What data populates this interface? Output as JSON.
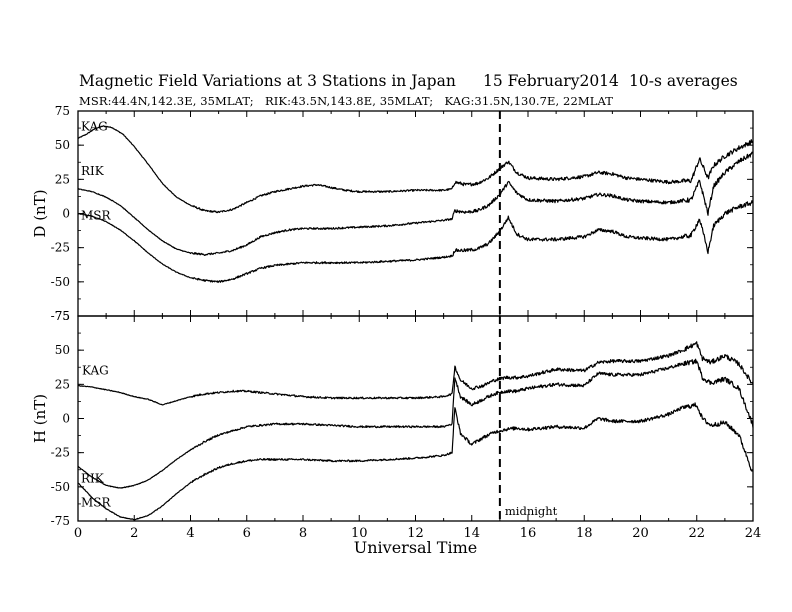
{
  "title": {
    "main": "Magnetic Field Variations at 3 Stations in Japan",
    "date": "15 February2014",
    "avg": "10-s averages"
  },
  "subtitle": "MSR:44.4N,142.3E, 35MLAT;   RIK:43.5N,143.8E, 35MLAT;   KAG:31.5N,130.7E, 22MLAT",
  "chart_data": [
    {
      "type": "line",
      "ylabel": "D (nT)",
      "xlim": [
        0,
        24
      ],
      "ylim": [
        -75,
        75
      ],
      "yticks": [
        -75,
        -50,
        -25,
        0,
        25,
        50,
        75
      ],
      "grid": false,
      "marker": {
        "x": 15,
        "style": "dashed"
      },
      "series": [
        {
          "name": "KAG",
          "x": [
            0,
            0.3,
            0.6,
            0.9,
            1.2,
            1.6,
            2.0,
            2.5,
            3.0,
            3.5,
            4.0,
            4.5,
            5.0,
            5.5,
            6.0,
            6.5,
            7.0,
            7.5,
            8.0,
            8.5,
            9.0,
            9.5,
            10.0,
            11.0,
            12.0,
            13.0,
            13.3,
            13.4,
            13.8,
            14.2,
            14.6,
            15.0,
            15.3,
            15.6,
            16.0,
            17.0,
            18.0,
            18.5,
            19.0,
            19.5,
            20.0,
            21.0,
            21.8,
            22.1,
            22.4,
            22.6,
            23.0,
            23.5,
            24.0
          ],
          "values": [
            55,
            58,
            62,
            64,
            63,
            58,
            49,
            36,
            22,
            12,
            6,
            2,
            1,
            3,
            8,
            13,
            16,
            18,
            20,
            21,
            19,
            17,
            16,
            16,
            17,
            17,
            18,
            23,
            21,
            22,
            26,
            33,
            38,
            30,
            26,
            25,
            27,
            30,
            29,
            26,
            25,
            23,
            24,
            40,
            26,
            35,
            42,
            48,
            53
          ]
        },
        {
          "name": "RIK",
          "x": [
            0,
            0.5,
            1.0,
            1.5,
            2.0,
            2.5,
            3.0,
            3.5,
            4.0,
            4.5,
            5.0,
            5.5,
            6.0,
            6.5,
            7.0,
            7.5,
            8.0,
            9.0,
            10.0,
            11.0,
            12.0,
            13.0,
            13.3,
            13.4,
            13.8,
            14.2,
            14.6,
            15.0,
            15.3,
            15.6,
            16.0,
            17.0,
            18.0,
            18.5,
            19.0,
            19.5,
            20.0,
            21.0,
            21.8,
            22.1,
            22.4,
            22.6,
            23.0,
            23.5,
            24.0
          ],
          "values": [
            18,
            16,
            12,
            6,
            -3,
            -12,
            -20,
            -26,
            -29,
            -30,
            -29,
            -27,
            -23,
            -17,
            -14,
            -12,
            -11,
            -11,
            -10,
            -9,
            -7,
            -5,
            -4,
            2,
            1,
            2,
            6,
            14,
            23,
            15,
            10,
            9,
            11,
            14,
            13,
            10,
            9,
            8,
            10,
            24,
            0,
            20,
            30,
            38,
            44
          ]
        },
        {
          "name": "MSR",
          "x": [
            0,
            0.5,
            1.0,
            1.5,
            2.0,
            2.5,
            3.0,
            3.5,
            4.0,
            4.5,
            5.0,
            5.5,
            6.0,
            6.5,
            7.0,
            7.5,
            8.0,
            9.0,
            10.0,
            11.0,
            12.0,
            13.0,
            13.3,
            13.4,
            13.8,
            14.2,
            14.6,
            15.0,
            15.3,
            15.6,
            16.0,
            17.0,
            18.0,
            18.5,
            19.0,
            19.5,
            20.0,
            21.0,
            21.8,
            22.1,
            22.4,
            22.6,
            23.0,
            23.5,
            24.0
          ],
          "values": [
            0,
            -2,
            -6,
            -12,
            -20,
            -29,
            -37,
            -43,
            -47,
            -49,
            -50,
            -48,
            -44,
            -40,
            -38,
            -37,
            -36,
            -36,
            -36,
            -35,
            -34,
            -32,
            -31,
            -27,
            -27,
            -26,
            -22,
            -13,
            -3,
            -15,
            -19,
            -19,
            -17,
            -12,
            -13,
            -17,
            -18,
            -19,
            -16,
            -4,
            -28,
            -9,
            0,
            5,
            8
          ]
        }
      ]
    },
    {
      "type": "line",
      "ylabel": "H (nT)",
      "xlabel": "Universal Time",
      "xlim": [
        0,
        24
      ],
      "xticks": [
        0,
        2,
        4,
        6,
        8,
        10,
        12,
        14,
        16,
        18,
        20,
        22,
        24
      ],
      "ylim": [
        -75,
        75
      ],
      "yticks": [
        -75,
        -50,
        -25,
        0,
        25,
        50,
        75
      ],
      "grid": false,
      "marker": {
        "x": 15,
        "style": "dashed",
        "label": "midnight"
      },
      "series": [
        {
          "name": "KAG",
          "x": [
            0,
            0.5,
            1.0,
            1.5,
            2.0,
            2.5,
            3.0,
            3.5,
            4.0,
            4.5,
            5.0,
            5.5,
            6.0,
            6.5,
            7.0,
            8.0,
            9.0,
            10.0,
            11.0,
            12.0,
            13.0,
            13.3,
            13.4,
            13.6,
            14.0,
            14.4,
            14.8,
            15.2,
            15.6,
            16.0,
            17.0,
            18.0,
            18.5,
            19.0,
            20.0,
            21.0,
            21.5,
            22.0,
            22.2,
            22.5,
            23.0,
            23.5,
            24.0
          ],
          "values": [
            24,
            23,
            21,
            19,
            16,
            14,
            10,
            13,
            16,
            18,
            19,
            20,
            20,
            19,
            18,
            16,
            15,
            15,
            15,
            15,
            16,
            18,
            38,
            28,
            22,
            24,
            28,
            30,
            30,
            31,
            36,
            35,
            41,
            42,
            42,
            46,
            50,
            55,
            44,
            41,
            46,
            40,
            25
          ]
        },
        {
          "name": "RIK",
          "x": [
            0,
            0.5,
            1.0,
            1.5,
            2.0,
            2.5,
            3.0,
            3.5,
            4.0,
            4.5,
            5.0,
            5.5,
            6.0,
            6.5,
            7.0,
            8.0,
            9.0,
            10.0,
            11.0,
            12.0,
            13.0,
            13.3,
            13.4,
            13.6,
            14.0,
            14.4,
            14.8,
            15.2,
            15.6,
            16.0,
            17.0,
            18.0,
            18.5,
            19.0,
            20.0,
            21.0,
            21.5,
            22.0,
            22.2,
            22.5,
            23.0,
            23.5,
            24.0
          ],
          "values": [
            -35,
            -43,
            -49,
            -51,
            -49,
            -45,
            -38,
            -30,
            -23,
            -17,
            -12,
            -9,
            -6,
            -5,
            -4,
            -4,
            -5,
            -6,
            -6,
            -6,
            -6,
            -4,
            30,
            16,
            10,
            14,
            18,
            20,
            20,
            22,
            25,
            24,
            33,
            32,
            32,
            37,
            40,
            42,
            30,
            26,
            29,
            22,
            -5
          ]
        },
        {
          "name": "MSR",
          "x": [
            0,
            0.5,
            1.0,
            1.5,
            2.0,
            2.5,
            3.0,
            3.5,
            4.0,
            4.5,
            5.0,
            5.5,
            6.0,
            6.5,
            7.0,
            8.0,
            9.0,
            10.0,
            11.0,
            12.0,
            13.0,
            13.3,
            13.4,
            13.6,
            14.0,
            14.4,
            14.8,
            15.2,
            15.6,
            16.0,
            17.0,
            18.0,
            18.5,
            19.0,
            20.0,
            21.0,
            21.5,
            22.0,
            22.2,
            22.5,
            23.0,
            23.5,
            24.0
          ],
          "values": [
            -47,
            -58,
            -66,
            -72,
            -74,
            -71,
            -64,
            -55,
            -47,
            -41,
            -36,
            -33,
            -31,
            -30,
            -30,
            -30,
            -31,
            -31,
            -30,
            -29,
            -27,
            -25,
            8,
            -11,
            -19,
            -14,
            -10,
            -8,
            -7,
            -8,
            -6,
            -7,
            0,
            -2,
            -2,
            3,
            8,
            10,
            0,
            -5,
            -3,
            -12,
            -40
          ]
        }
      ]
    }
  ]
}
